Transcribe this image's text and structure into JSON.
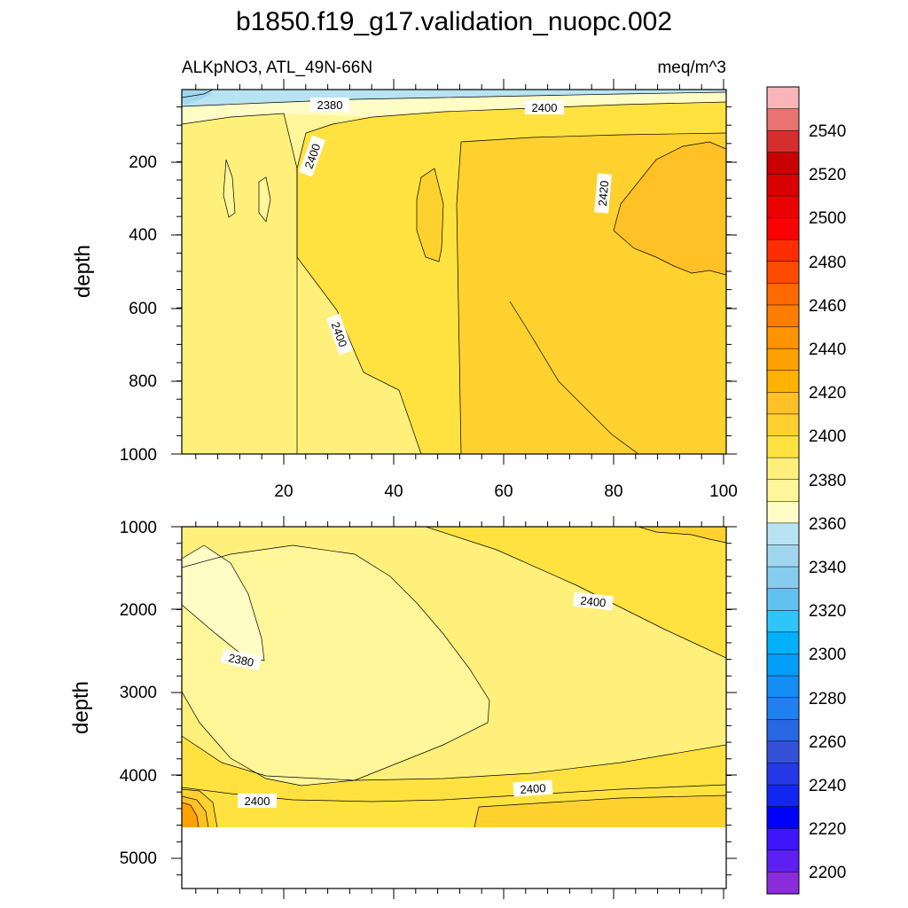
{
  "chart_data": {
    "type": "heatmap",
    "title": "b1850.f19_g17.validation_nuopc.002",
    "subtitle_left": "ALKpNO3, ATL_49N-66N",
    "subtitle_right": "meq/m^3",
    "panels": [
      {
        "name": "upper",
        "ylabel": "depth",
        "ylim": [
          0,
          1000
        ],
        "xlim": [
          0,
          101
        ],
        "yticks": [
          "200",
          "400",
          "600",
          "800",
          "1000"
        ],
        "xticks": [
          "20",
          "40",
          "60",
          "80",
          "100"
        ],
        "contour_labels": [
          "2380",
          "2400",
          "2400",
          "2420",
          "2400"
        ]
      },
      {
        "name": "lower",
        "ylabel": "depth",
        "ylim": [
          1000,
          5400
        ],
        "xlim": [
          0,
          101
        ],
        "yticks": [
          "1000",
          "2000",
          "3000",
          "4000",
          "5000"
        ],
        "contour_labels": [
          "2400",
          "2380",
          "2400",
          "2400"
        ]
      }
    ],
    "colorbar": {
      "labels": [
        "2540",
        "2520",
        "2500",
        "2480",
        "2460",
        "2440",
        "2420",
        "2400",
        "2380",
        "2360",
        "2340",
        "2320",
        "2300",
        "2280",
        "2260",
        "2240",
        "2220",
        "2200"
      ],
      "colors": [
        "#f9b5b8",
        "#e97272",
        "#d42e2e",
        "#c80000",
        "#d90000",
        "#eb0000",
        "#fd0000",
        "#ff2d00",
        "#ff4a00",
        "#ff6a00",
        "#ff7d00",
        "#ff9300",
        "#ffa100",
        "#ffb200",
        "#ffc125",
        "#ffd12f",
        "#ffe240",
        "#fff07c",
        "#fff599",
        "#fffcc6",
        "#b7e3f3",
        "#a1d6ef",
        "#85ccee",
        "#61c2f2",
        "#2ec5fb",
        "#00b0f9",
        "#009ef9",
        "#148df5",
        "#2080f0",
        "#2768e2",
        "#3451d7",
        "#2438e8",
        "#1126ef",
        "#0000ff",
        "#3d16fb",
        "#5e1ff3",
        "#8a2bdc"
      ]
    }
  }
}
